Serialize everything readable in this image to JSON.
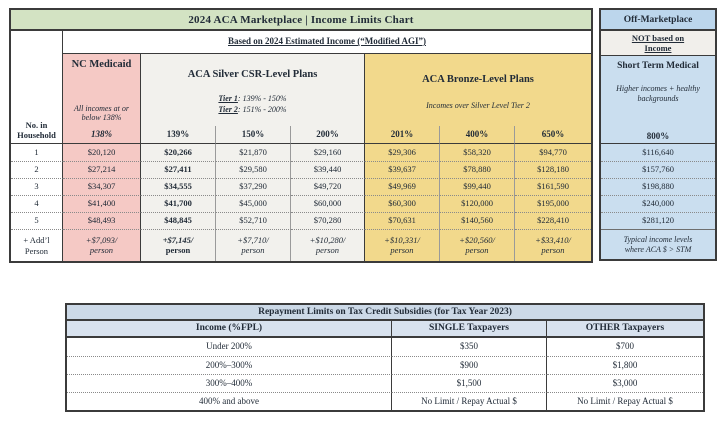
{
  "colors": {
    "title_green": "#d3e3c3",
    "medicaid_pink": "#f5c9c5",
    "silver_gray": "#f2f1ed",
    "bronze_gold": "#f2d98c",
    "stm_blue": "#cadeef",
    "off_header_blue": "#bcd6ec",
    "not_based_bg": "#f1efeb",
    "repay_title_bg": "#ccd9e7",
    "repay_header_bg": "#d8e2ee",
    "border_dark": "#3b3b3b",
    "text_dark": "#222c38"
  },
  "chart_data": [
    {
      "type": "table",
      "title": "2024 ACA Marketplace | Income Limits Chart",
      "subtitle": "Based on 2024 Estimated Income (“Modified AGI”)",
      "row_axis": "No. in Household",
      "groups": {
        "medicaid": {
          "title": "NC Medicaid",
          "note": "All incomes at or below 138%"
        },
        "silver": {
          "title": "ACA Silver CSR-Level Plans",
          "tier1_label": "Tier 1",
          "tier1_range": ": 139% - 150%",
          "tier2_label": "Tier 2",
          "tier2_range": ": 151% - 200%"
        },
        "bronze": {
          "title": "ACA Bronze-Level Plans",
          "note": "Incomes over Silver Level Tier 2"
        }
      },
      "columns": [
        "138%",
        "139%",
        "150%",
        "200%",
        "201%",
        "400%",
        "650%"
      ],
      "rows": [
        {
          "label": "1",
          "values": [
            "$20,120",
            "$20,266",
            "$21,870",
            "$29,160",
            "$29,306",
            "$58,320",
            "$94,770"
          ]
        },
        {
          "label": "2",
          "values": [
            "$27,214",
            "$27,411",
            "$29,580",
            "$39,440",
            "$39,637",
            "$78,880",
            "$128,180"
          ]
        },
        {
          "label": "3",
          "values": [
            "$34,307",
            "$34,555",
            "$37,290",
            "$49,720",
            "$49,969",
            "$99,440",
            "$161,590"
          ]
        },
        {
          "label": "4",
          "values": [
            "$41,400",
            "$41,700",
            "$45,000",
            "$60,000",
            "$60,300",
            "$120,000",
            "$195,000"
          ]
        },
        {
          "label": "5",
          "values": [
            "$48,493",
            "$48,845",
            "$52,710",
            "$70,280",
            "$70,631",
            "$140,560",
            "$228,410"
          ]
        }
      ],
      "addl": {
        "label": "+ Add’l Person",
        "values": [
          "+$7,093/",
          "+$7,145/",
          "+$7,710/",
          "+$10,280/",
          "+$10,331/",
          "+$20,560/",
          "+$33,410/"
        ],
        "unit": "person"
      }
    },
    {
      "type": "table",
      "title": "Off-Marketplace",
      "not_based_line1": "NOT based on",
      "not_based_line2": "Income",
      "product": "Short Term Medical",
      "note": "Higher incomes + healthy backgrounds",
      "column": "800%",
      "values": [
        "$116,640",
        "$157,760",
        "$198,880",
        "$240,000",
        "$281,120"
      ],
      "footer_line1": "Typical income levels",
      "footer_line2": "where ACA $ > STM"
    },
    {
      "type": "table",
      "title": "Repayment Limits on Tax Credit Subsidies (for Tax Year 2023)",
      "columns": [
        "Income (%FPL)",
        "SINGLE Taxpayers",
        "OTHER Taxpayers"
      ],
      "rows": [
        {
          "income": "Under 200%",
          "single": "$350",
          "other": "$700"
        },
        {
          "income": "200%–300%",
          "single": "$900",
          "other": "$1,800"
        },
        {
          "income": "300%–400%",
          "single": "$1,500",
          "other": "$3,000"
        },
        {
          "income": "400% and above",
          "single": "No Limit / Repay Actual $",
          "other": "No Limit / Repay Actual $"
        }
      ]
    }
  ]
}
